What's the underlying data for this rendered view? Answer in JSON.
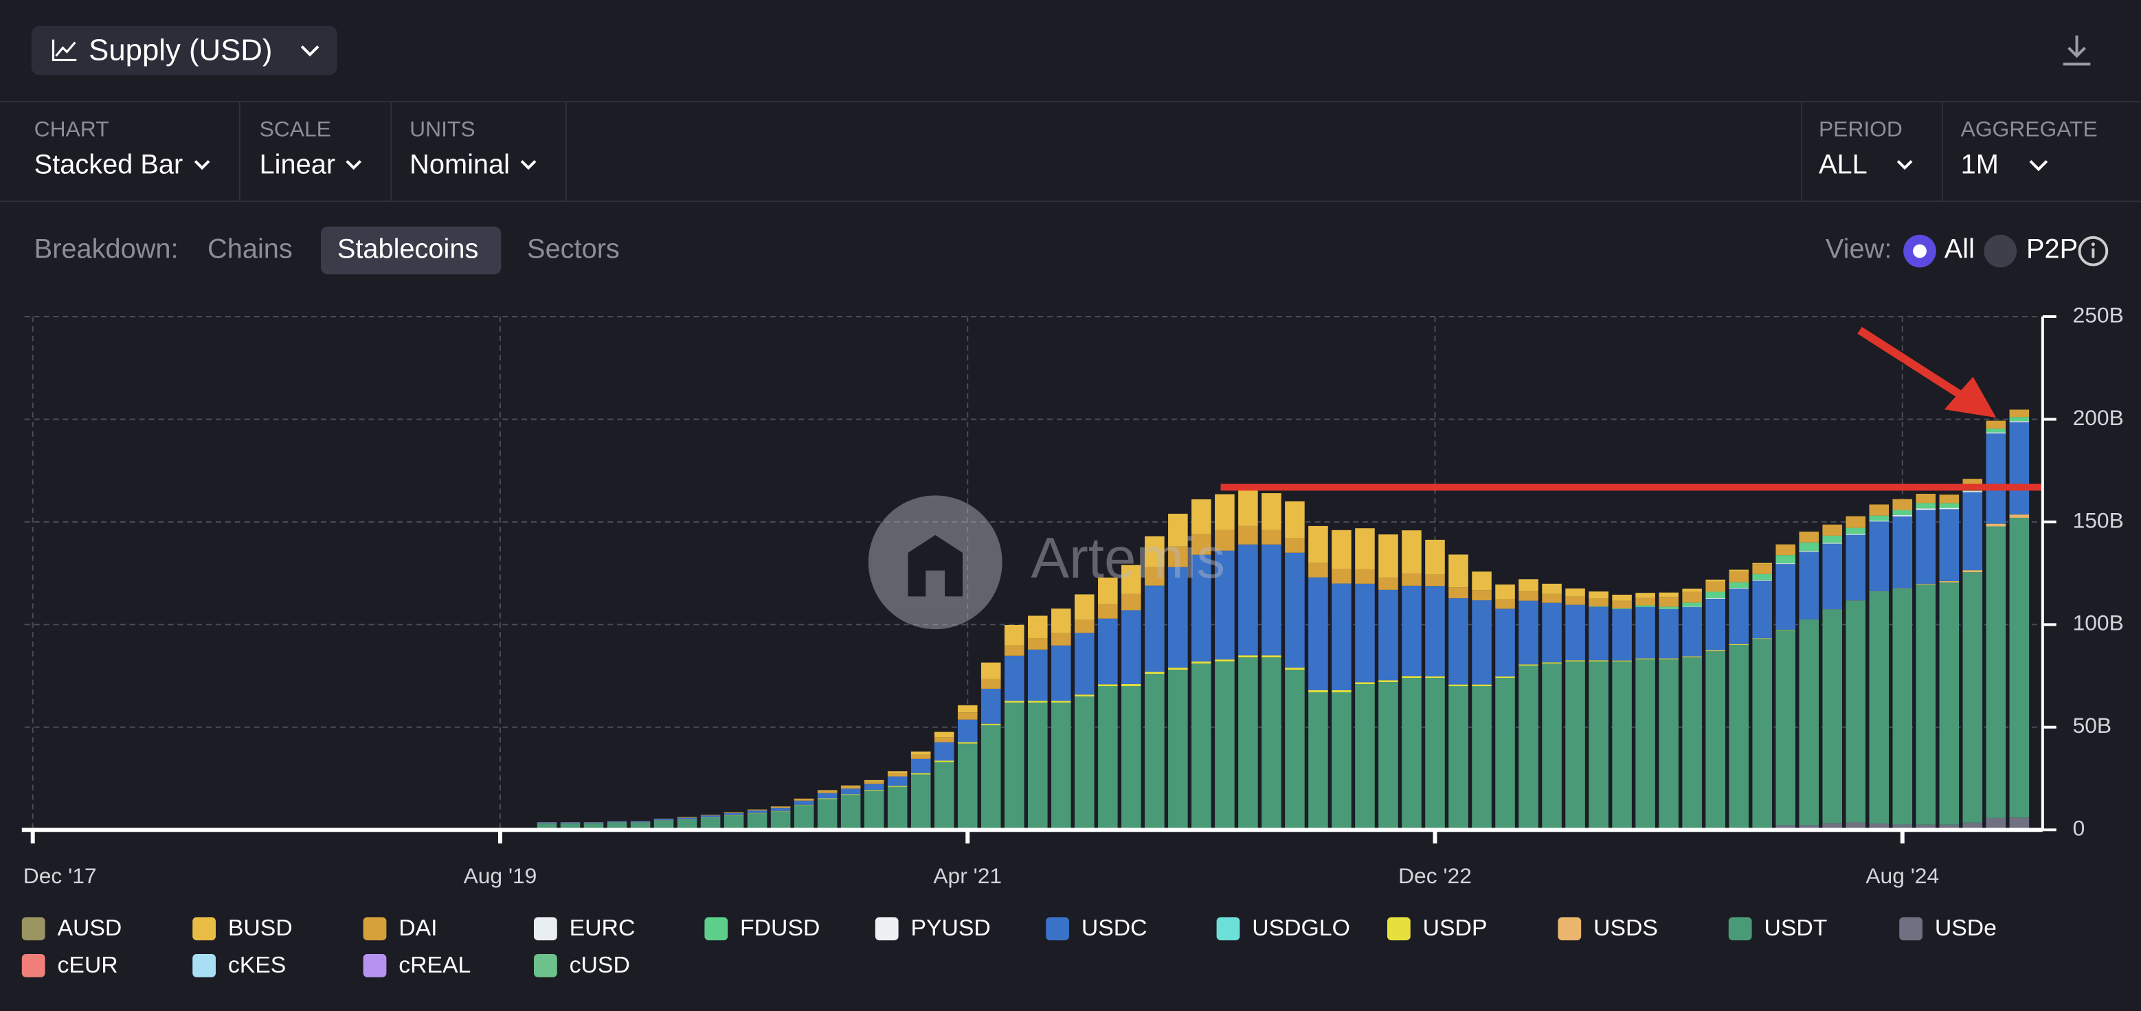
{
  "header": {
    "title": "Supply (USD)"
  },
  "controls": [
    {
      "label": "CHART",
      "value": "Stacked Bar"
    },
    {
      "label": "SCALE",
      "value": "Linear"
    },
    {
      "label": "UNITS",
      "value": "Nominal"
    },
    {
      "label": "PERIOD",
      "value": "ALL"
    },
    {
      "label": "AGGREGATE",
      "value": "1M"
    }
  ],
  "breakdown": {
    "label": "Breakdown:",
    "options": [
      "Chains",
      "Stablecoins",
      "Sectors"
    ]
  },
  "view": {
    "label": "View:",
    "options": [
      "All",
      "P2P"
    ]
  },
  "watermark": "Artemis",
  "chart_data": {
    "type": "stacked_bar",
    "x": [
      "2019-10",
      "2019-11",
      "2019-12",
      "2020-01",
      "2020-02",
      "2020-03",
      "2020-04",
      "2020-05",
      "2020-06",
      "2020-07",
      "2020-08",
      "2020-09",
      "2020-10",
      "2020-11",
      "2020-12",
      "2021-01",
      "2021-02",
      "2021-03",
      "2021-04",
      "2021-05",
      "2021-06",
      "2021-07",
      "2021-08",
      "2021-09",
      "2021-10",
      "2021-11",
      "2021-12",
      "2022-01",
      "2022-02",
      "2022-03",
      "2022-04",
      "2022-05",
      "2022-06",
      "2022-07",
      "2022-08",
      "2022-09",
      "2022-10",
      "2022-11",
      "2022-12",
      "2023-01",
      "2023-02",
      "2023-03",
      "2023-04",
      "2023-05",
      "2023-06",
      "2023-07",
      "2023-08",
      "2023-09",
      "2023-10",
      "2023-11",
      "2023-12",
      "2024-01",
      "2024-02",
      "2024-03",
      "2024-04",
      "2024-05",
      "2024-06",
      "2024-07",
      "2024-08",
      "2024-09",
      "2024-10",
      "2024-11",
      "2024-12",
      "2025-01"
    ],
    "xlim": [
      "2017-12",
      "2025-02"
    ],
    "xticks": [
      {
        "value": "2017-12",
        "label": "Dec '17"
      },
      {
        "value": "2019-08",
        "label": "Aug '19"
      },
      {
        "value": "2021-04",
        "label": "Apr '21"
      },
      {
        "value": "2022-12",
        "label": "Dec '22"
      },
      {
        "value": "2024-08",
        "label": "Aug '24"
      }
    ],
    "ylim": [
      0,
      250
    ],
    "yticks": [
      0,
      {
        "value": 50,
        "label": "50B"
      },
      {
        "value": 100,
        "label": "100B"
      },
      {
        "value": 150,
        "label": "150B"
      },
      {
        "value": 200,
        "label": "200B"
      },
      {
        "value": 250,
        "label": "250B"
      }
    ],
    "grid": true,
    "series": [
      {
        "name": "AUSD",
        "color": "#9a9461",
        "values": [
          0,
          0,
          0,
          0,
          0,
          0,
          0,
          0,
          0,
          0,
          0,
          0,
          0,
          0,
          0,
          0,
          0,
          0,
          0,
          0,
          0,
          0,
          0,
          0,
          0,
          0,
          0,
          0,
          0,
          0,
          0,
          0,
          0,
          0,
          0,
          0,
          0,
          0,
          0,
          0,
          0,
          0,
          0,
          0,
          0,
          0,
          0,
          0,
          0,
          0,
          0,
          0,
          0,
          0,
          0,
          0,
          0,
          0,
          0,
          0,
          0,
          0,
          0,
          0
        ]
      },
      {
        "name": "BUSD",
        "color": "#e9bd45",
        "values": [
          0,
          0,
          0,
          0,
          0,
          0,
          0.1,
          0.1,
          0.2,
          0.2,
          0.2,
          0.3,
          0.5,
          0.5,
          0.6,
          0.9,
          1.5,
          2.5,
          3.5,
          8,
          10,
          11,
          12,
          12.5,
          13,
          14,
          15,
          16,
          17,
          17.5,
          17.5,
          18,
          18,
          18,
          19,
          20,
          21,
          21,
          17,
          16,
          9,
          7,
          6,
          5,
          4,
          3.5,
          3,
          2.5,
          2.2,
          1.5,
          1,
          0.9,
          0.5,
          0.2,
          0.1,
          0.1,
          0.1,
          0,
          0,
          0,
          0,
          0,
          0,
          0
        ]
      },
      {
        "name": "DAI",
        "color": "#d6a13a",
        "values": [
          0.1,
          0.1,
          0.1,
          0.1,
          0.1,
          0.15,
          0.2,
          0.2,
          0.2,
          0.3,
          0.5,
          0.7,
          0.9,
          1,
          1.2,
          1.6,
          2,
          2.5,
          3.5,
          4.8,
          5,
          5.5,
          6,
          6.3,
          7,
          8,
          9,
          10,
          10,
          10,
          9,
          7,
          7,
          7,
          7,
          7,
          6,
          6,
          5.5,
          5.3,
          5,
          4.8,
          4.5,
          4.3,
          4,
          3.7,
          3.6,
          3.6,
          4.7,
          5.3,
          4.9,
          5.2,
          4.9,
          5,
          5.2,
          5.3,
          5.6,
          5.4,
          5.3,
          4.5,
          4.2,
          4,
          3.8,
          3.6
        ]
      },
      {
        "name": "EURC",
        "color": "#e8eef2",
        "values": [
          0,
          0,
          0,
          0,
          0,
          0,
          0,
          0,
          0,
          0,
          0,
          0,
          0,
          0,
          0,
          0,
          0,
          0,
          0,
          0,
          0,
          0,
          0,
          0,
          0,
          0,
          0,
          0,
          0,
          0,
          0,
          0,
          0,
          0,
          0,
          0,
          0,
          0,
          0,
          0,
          0,
          0,
          0,
          0,
          0,
          0,
          0,
          0,
          0,
          0,
          0,
          0,
          0,
          0,
          0,
          0,
          0,
          0,
          0,
          0,
          0,
          0,
          0,
          0
        ]
      },
      {
        "name": "FDUSD",
        "color": "#5dcf8a",
        "values": [
          0,
          0,
          0,
          0,
          0,
          0,
          0,
          0,
          0,
          0,
          0,
          0,
          0,
          0,
          0,
          0,
          0,
          0,
          0,
          0,
          0,
          0,
          0,
          0,
          0,
          0,
          0,
          0,
          0,
          0,
          0,
          0,
          0,
          0,
          0,
          0,
          0,
          0,
          0,
          0,
          0,
          0,
          0,
          0,
          0,
          0.3,
          0.4,
          0.8,
          1.1,
          2,
          3.2,
          2.8,
          3,
          4,
          4.2,
          3.5,
          3,
          2.5,
          2.5,
          2.6,
          2.3,
          2,
          1.9,
          2
        ]
      },
      {
        "name": "PYUSD",
        "color": "#eef1f4",
        "values": [
          0,
          0,
          0,
          0,
          0,
          0,
          0,
          0,
          0,
          0,
          0,
          0,
          0,
          0,
          0,
          0,
          0,
          0,
          0,
          0,
          0,
          0,
          0,
          0,
          0,
          0,
          0,
          0,
          0,
          0,
          0,
          0,
          0,
          0,
          0,
          0,
          0,
          0,
          0,
          0,
          0,
          0,
          0,
          0,
          0,
          0,
          0.04,
          0.04,
          0.1,
          0.2,
          0.3,
          0.3,
          0.3,
          0.35,
          0.4,
          0.4,
          0.4,
          0.4,
          0.6,
          0.7,
          0.6,
          0.5,
          0.5,
          0.5
        ]
      },
      {
        "name": "USDC",
        "color": "#3a72c8",
        "values": [
          0.5,
          0.5,
          0.5,
          0.5,
          0.6,
          0.7,
          0.8,
          0.9,
          1,
          1.2,
          1.5,
          2,
          2.6,
          2.8,
          3,
          4.5,
          7,
          9,
          11,
          17,
          22,
          25,
          27,
          30,
          32,
          36,
          42,
          49,
          52,
          53,
          54,
          54,
          56,
          55,
          52,
          48,
          44,
          44,
          44,
          42,
          41,
          33,
          31,
          29,
          27,
          26,
          25,
          25,
          24,
          24,
          25,
          27,
          28,
          32,
          33,
          32,
          32,
          34,
          35,
          36,
          35,
          38,
          44,
          45
        ]
      },
      {
        "name": "USDGLO",
        "color": "#6ddfd9",
        "values": [
          0,
          0,
          0,
          0,
          0,
          0,
          0,
          0,
          0,
          0,
          0,
          0,
          0,
          0,
          0,
          0,
          0,
          0,
          0,
          0,
          0,
          0,
          0,
          0,
          0,
          0,
          0,
          0,
          0,
          0,
          0,
          0,
          0,
          0,
          0,
          0,
          0,
          0,
          0,
          0,
          0,
          0,
          0,
          0,
          0,
          0,
          0,
          0,
          0,
          0,
          0,
          0,
          0,
          0,
          0,
          0,
          0,
          0,
          0,
          0,
          0,
          0,
          0,
          0
        ]
      },
      {
        "name": "USDP",
        "color": "#e6e03c",
        "values": [
          0.1,
          0.1,
          0.1,
          0.1,
          0.1,
          0.1,
          0.1,
          0.1,
          0.2,
          0.2,
          0.2,
          0.2,
          0.3,
          0.3,
          0.4,
          0.5,
          0.6,
          0.7,
          0.7,
          0.7,
          0.8,
          0.8,
          0.8,
          0.9,
          0.9,
          1,
          1,
          1,
          1,
          1,
          1,
          1,
          1,
          1,
          1,
          0.9,
          0.9,
          0.9,
          0.8,
          0.8,
          0.8,
          0.7,
          0.6,
          0.6,
          0.6,
          0.6,
          0.5,
          0.5,
          0.5,
          0.5,
          0.5,
          0.4,
          0.3,
          0.2,
          0.1,
          0.1,
          0.1,
          0.1,
          0.1,
          0.1,
          0.1,
          0.1,
          0.1,
          0.1
        ]
      },
      {
        "name": "USDS",
        "color": "#eab56c",
        "values": [
          0,
          0,
          0,
          0,
          0,
          0,
          0,
          0,
          0,
          0,
          0,
          0,
          0,
          0,
          0,
          0,
          0,
          0,
          0,
          0,
          0,
          0,
          0,
          0,
          0,
          0,
          0,
          0,
          0,
          0,
          0,
          0,
          0,
          0,
          0,
          0,
          0,
          0,
          0,
          0,
          0,
          0,
          0,
          0,
          0,
          0,
          0,
          0,
          0,
          0,
          0,
          0,
          0,
          0,
          0,
          0,
          0,
          0,
          0,
          0.3,
          0.6,
          0.9,
          1.2,
          1.5
        ]
      },
      {
        "name": "USDT",
        "color": "#4a9a78",
        "values": [
          3,
          3,
          3,
          3.5,
          3.5,
          4.5,
          5,
          6,
          7,
          8,
          9,
          12,
          15,
          17,
          19,
          21,
          27,
          33,
          42,
          51,
          62,
          62,
          62,
          65,
          70,
          70,
          76,
          78,
          81,
          82,
          84,
          84,
          78,
          67,
          67,
          71,
          72,
          74,
          74,
          70,
          70,
          74,
          80,
          81,
          82,
          82,
          82,
          83,
          83,
          84,
          87,
          90,
          92,
          95,
          100,
          104,
          108,
          113,
          115,
          117,
          118,
          122,
          142,
          146
        ]
      },
      {
        "name": "USDe",
        "color": "#6f7082",
        "values": [
          0,
          0,
          0,
          0,
          0,
          0,
          0,
          0,
          0,
          0,
          0,
          0,
          0,
          0,
          0,
          0,
          0,
          0,
          0,
          0,
          0,
          0,
          0,
          0,
          0,
          0,
          0,
          0,
          0,
          0,
          0,
          0,
          0,
          0,
          0,
          0,
          0,
          0,
          0,
          0,
          0,
          0,
          0,
          0,
          0,
          0,
          0,
          0,
          0,
          0,
          0,
          0.1,
          1,
          2.3,
          2.3,
          3.3,
          3.6,
          3.1,
          2.6,
          2.5,
          2.5,
          3.5,
          5.8,
          6
        ]
      },
      {
        "name": "cEUR",
        "color": "#ef7f78",
        "values": [
          0,
          0,
          0,
          0,
          0,
          0,
          0,
          0,
          0,
          0,
          0,
          0,
          0,
          0,
          0,
          0,
          0,
          0,
          0,
          0,
          0,
          0,
          0,
          0,
          0,
          0,
          0,
          0,
          0,
          0,
          0,
          0,
          0,
          0,
          0,
          0,
          0,
          0,
          0,
          0,
          0,
          0,
          0,
          0,
          0,
          0,
          0,
          0,
          0,
          0,
          0,
          0,
          0,
          0,
          0,
          0,
          0,
          0,
          0,
          0,
          0,
          0,
          0,
          0
        ]
      },
      {
        "name": "cKES",
        "color": "#a8dff5",
        "values": [
          0,
          0,
          0,
          0,
          0,
          0,
          0,
          0,
          0,
          0,
          0,
          0,
          0,
          0,
          0,
          0,
          0,
          0,
          0,
          0,
          0,
          0,
          0,
          0,
          0,
          0,
          0,
          0,
          0,
          0,
          0,
          0,
          0,
          0,
          0,
          0,
          0,
          0,
          0,
          0,
          0,
          0,
          0,
          0,
          0,
          0,
          0,
          0,
          0,
          0,
          0,
          0,
          0,
          0,
          0,
          0,
          0,
          0,
          0,
          0,
          0,
          0,
          0,
          0
        ]
      },
      {
        "name": "cREAL",
        "color": "#b792f0",
        "values": [
          0,
          0,
          0,
          0,
          0,
          0,
          0,
          0,
          0,
          0,
          0,
          0,
          0,
          0,
          0,
          0,
          0,
          0,
          0,
          0,
          0,
          0,
          0,
          0,
          0,
          0,
          0,
          0,
          0,
          0,
          0,
          0,
          0,
          0,
          0,
          0,
          0,
          0,
          0,
          0,
          0,
          0,
          0,
          0,
          0,
          0,
          0,
          0,
          0,
          0,
          0,
          0,
          0,
          0,
          0,
          0,
          0,
          0,
          0,
          0,
          0,
          0,
          0,
          0
        ]
      },
      {
        "name": "cUSD",
        "color": "#6cc28a",
        "values": [
          0,
          0,
          0,
          0,
          0,
          0,
          0,
          0,
          0,
          0,
          0,
          0,
          0,
          0,
          0,
          0,
          0,
          0,
          0,
          0,
          0,
          0,
          0,
          0,
          0,
          0,
          0,
          0,
          0,
          0,
          0,
          0,
          0,
          0,
          0,
          0,
          0,
          0,
          0,
          0,
          0,
          0,
          0,
          0,
          0,
          0,
          0,
          0,
          0,
          0,
          0,
          0,
          0,
          0,
          0,
          0,
          0,
          0,
          0,
          0,
          0,
          0,
          0,
          0
        ]
      }
    ]
  }
}
